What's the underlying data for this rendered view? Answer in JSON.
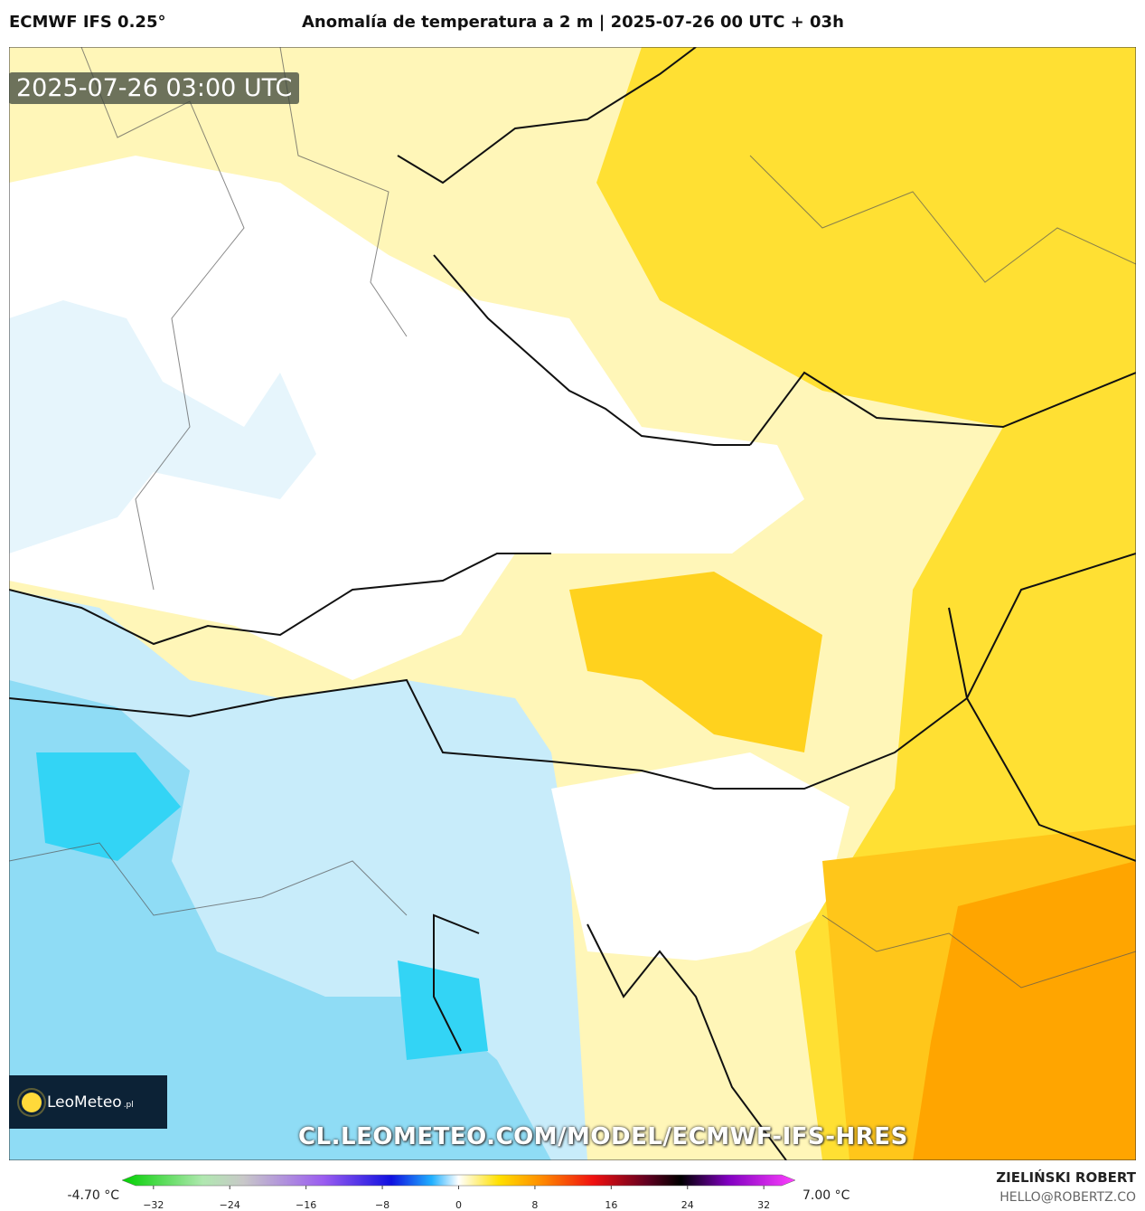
{
  "header": {
    "model": "ECMWF IFS 0.25°",
    "title": "Anomalía de temperatura a 2 m | 2025-07-26 00 UTC + 03h"
  },
  "timestamp": "2025-07-26 03:00 UTC",
  "logo": {
    "name": "LeoMeteo",
    "tld": ".pl"
  },
  "watermark": "CL.LEOMETEO.COM/MODEL/ECMWF-IFS-HRES",
  "colorbar": {
    "min_label": "-4.70 °C",
    "max_label": "7.00 °C",
    "lim": [
      -35.3,
      35.3
    ],
    "ticks": [
      {
        "value": -32,
        "label": "−32"
      },
      {
        "value": -24,
        "label": "−24"
      },
      {
        "value": -16,
        "label": "−16"
      },
      {
        "value": -8,
        "label": "−8"
      },
      0,
      8,
      16,
      24,
      32
    ]
  },
  "author": {
    "name": "ZIELIŃSKI ROBERT",
    "email": "HELLO@ROBERTZ.CO"
  }
}
